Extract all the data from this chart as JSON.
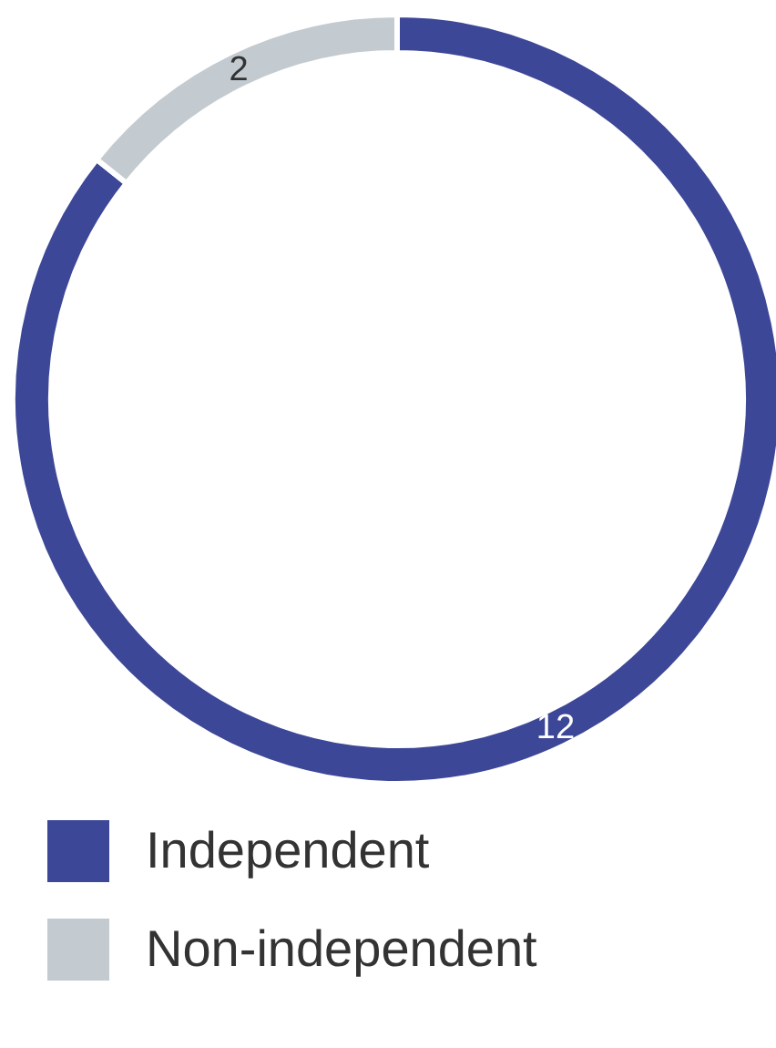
{
  "chart_data": {
    "type": "donut",
    "categories": [
      "Independent",
      "Non-independent"
    ],
    "values": [
      12,
      2
    ],
    "colors": [
      "#3d4797",
      "#c3cbd1"
    ],
    "data_labels": true,
    "legend": "bottom left"
  }
}
